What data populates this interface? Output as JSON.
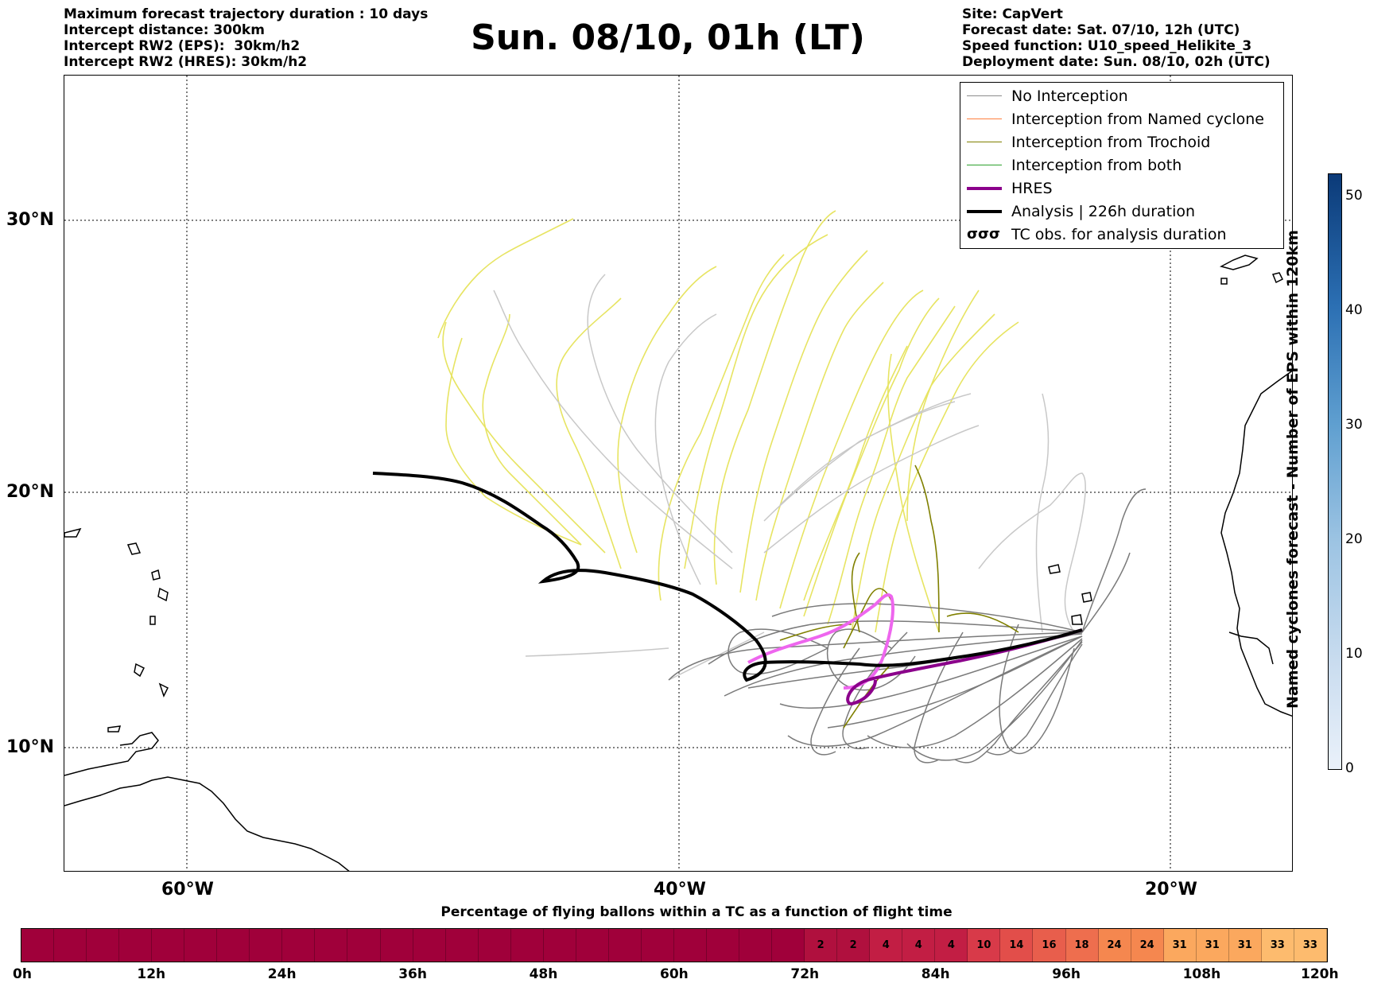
{
  "header": {
    "left_lines": [
      "Maximum forecast trajectory duration : 10 days",
      "Intercept distance: 300km",
      "Intercept RW2 (EPS):  30km/h2",
      "Intercept RW2 (HRES): 30km/h2"
    ],
    "title": "Sun. 08/10, 01h (LT)",
    "right_lines": [
      "Site: CapVert",
      "Forecast date: Sat. 07/10, 12h (UTC)",
      "Speed function: U10_speed_Helikite_3",
      "Deployment date: Sun. 08/10, 02h (UTC)"
    ]
  },
  "map": {
    "lat_labels": [
      "30°N",
      "20°N",
      "10°N"
    ],
    "lon_labels": [
      "60°W",
      "40°W",
      "20°W"
    ]
  },
  "legend": {
    "items": [
      {
        "label": "No Interception",
        "color": "#8c8c8c"
      },
      {
        "label": "Interception from Named cyclone",
        "color": "#ff7f3f"
      },
      {
        "label": "Interception from Trochoid",
        "color": "#808000"
      },
      {
        "label": "Interception from both",
        "color": "#2ca02c"
      },
      {
        "label": "HRES",
        "color": "#8b008b"
      },
      {
        "label": "Analysis | 226h duration",
        "color": "#000000"
      },
      {
        "label": "TC obs. for analysis duration",
        "color": "#000000"
      }
    ],
    "tc_symbol": "σσσ"
  },
  "colorbar": {
    "label": "Named cyclones forecast - Number of EPS within 120km",
    "ticks": [
      "0",
      "10",
      "20",
      "30",
      "40",
      "50"
    ]
  },
  "percentage_bar": {
    "title": "Percentage of flying ballons within a TC as a function of flight time",
    "hour_labels": [
      "0h",
      "12h",
      "24h",
      "36h",
      "48h",
      "60h",
      "72h",
      "84h",
      "96h",
      "108h",
      "120h"
    ],
    "values": [
      0,
      0,
      0,
      0,
      0,
      0,
      0,
      0,
      0,
      0,
      0,
      0,
      0,
      0,
      0,
      0,
      0,
      0,
      0,
      0,
      0,
      0,
      0,
      0,
      2,
      2,
      4,
      4,
      4,
      10,
      14,
      16,
      18,
      24,
      24,
      31,
      31,
      31,
      33,
      33
    ]
  },
  "colors": {
    "eps_no_intercept": "#8c8c8c",
    "trochoid": "#808000",
    "trochoid_light": "#e6e35a",
    "hres_light": "#ee66ee",
    "hres": "#8b008b",
    "analysis": "#000000"
  }
}
